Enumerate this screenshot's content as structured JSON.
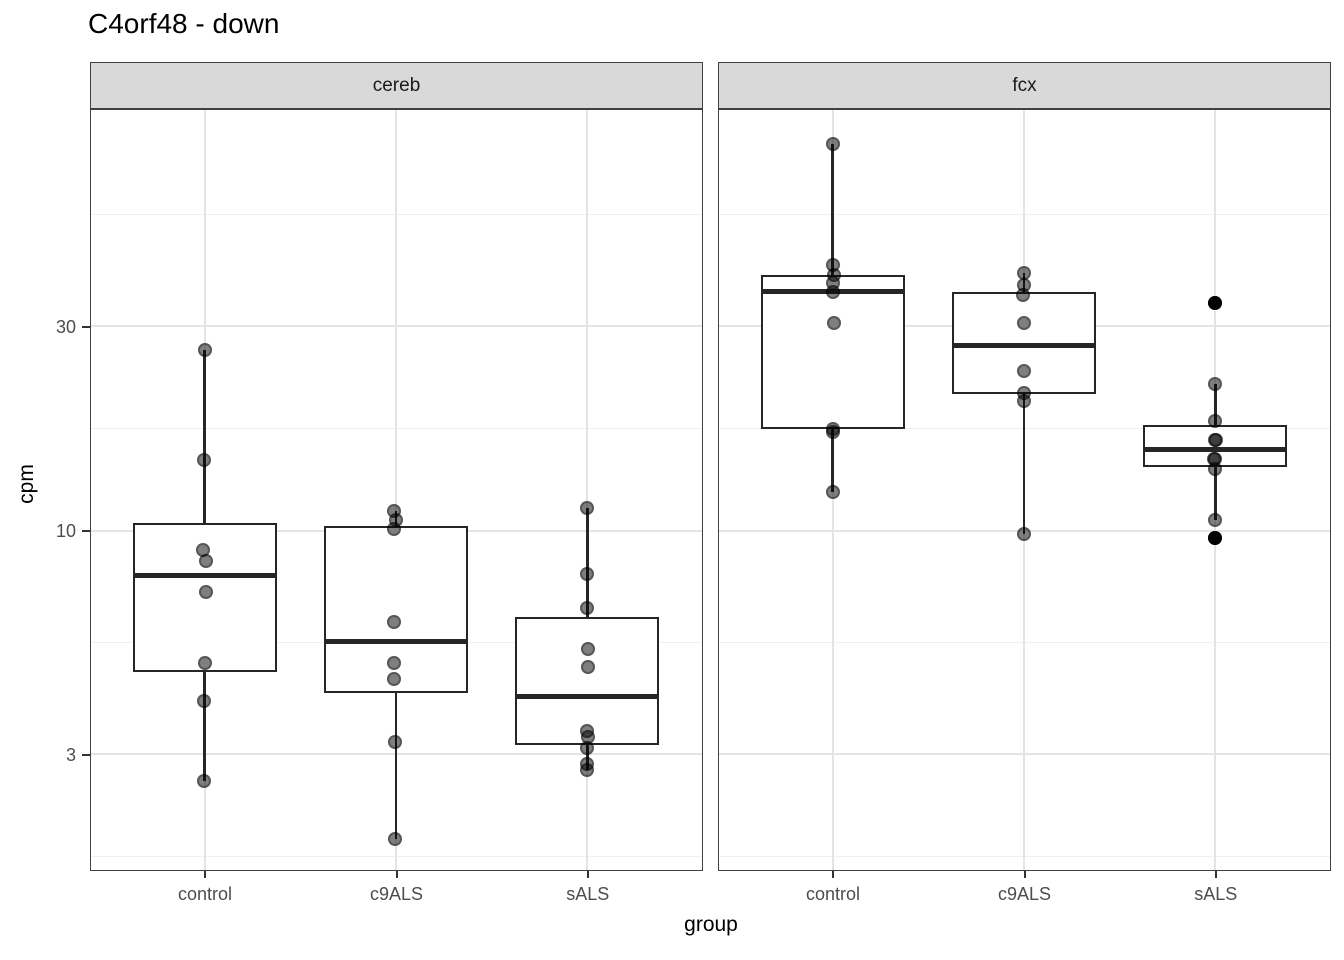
{
  "chart_data": {
    "type": "boxplot",
    "title": "C4orf48 - down",
    "xlabel": "group",
    "ylabel": "cpm",
    "y_scale": "log10",
    "y_tick_values": [
      30,
      10,
      3
    ],
    "y_minor_breaks": [
      54.77,
      17.32,
      5.48,
      1.73
    ],
    "x_categories": [
      "control",
      "c9ALS",
      "sALS"
    ],
    "legend": "none",
    "grid": "on",
    "facets": [
      {
        "label": "cereb",
        "groups": [
          {
            "name": "control",
            "points": [
              26.4,
              14.6,
              9.0,
              8.5,
              7.2,
              4.9,
              4.0,
              2.6
            ],
            "jitter": [
              0,
              -1,
              -2,
              1,
              1,
              0,
              -1,
              -1
            ],
            "box": {
              "q1": 4.68,
              "median": 7.85,
              "q3": 10.4,
              "whisker_low": 2.6,
              "whisker_high": 26.4
            },
            "outliers": []
          },
          {
            "name": "c9ALS",
            "points": [
              11.1,
              10.6,
              10.1,
              6.1,
              4.9,
              4.5,
              3.2,
              1.9
            ],
            "jitter": [
              -2,
              0,
              -2,
              -2,
              -2,
              -2,
              -1,
              -1
            ],
            "box": {
              "q1": 4.18,
              "median": 5.5,
              "q3": 10.23,
              "whisker_low": 1.9,
              "whisker_high": 11.1
            },
            "outliers": []
          },
          {
            "name": "sALS",
            "points": [
              11.3,
              7.9,
              6.6,
              5.3,
              4.8,
              3.4,
              3.3,
              3.1,
              2.85,
              2.75
            ],
            "jitter": [
              0,
              0,
              0,
              1,
              1,
              0,
              1,
              0,
              0,
              0
            ],
            "box": {
              "q1": 3.15,
              "median": 4.1,
              "q3": 6.28,
              "whisker_low": 2.75,
              "whisker_high": 11.3
            },
            "outliers": []
          }
        ]
      },
      {
        "label": "fcx",
        "groups": [
          {
            "name": "control",
            "points": [
              80,
              41.7,
              39.5,
              37.8,
              36.1,
              30.5,
              17.3,
              17.0,
              12.3
            ],
            "jitter": [
              0,
              0,
              1,
              0,
              0,
              1,
              0,
              0,
              0
            ],
            "box": {
              "q1": 17.3,
              "median": 36.1,
              "q3": 39.5,
              "whisker_low": 12.3,
              "whisker_high": 80
            },
            "outliers": []
          },
          {
            "name": "c9ALS",
            "points": [
              40,
              37.4,
              35.5,
              30.5,
              23.6,
              21.0,
              20.1,
              9.8
            ],
            "jitter": [
              0,
              0,
              -1,
              0,
              0,
              0,
              0,
              0
            ],
            "box": {
              "q1": 20.8,
              "median": 27.0,
              "q3": 36.0,
              "whisker_low": 9.8,
              "whisker_high": 40
            },
            "outliers": []
          },
          {
            "name": "sALS",
            "points": [
              34,
              22,
              18,
              16.3,
              16.3,
              14.7,
              14.7,
              13.9,
              10.6,
              9.6
            ],
            "jitter": [
              0,
              0,
              0,
              0,
              1,
              0,
              -1,
              0,
              0,
              0
            ],
            "box": {
              "q1": 14.1,
              "median": 15.5,
              "q3": 17.6,
              "whisker_low": 10.6,
              "whisker_high": 22
            },
            "outliers": [
              34,
              9.6
            ]
          }
        ]
      }
    ]
  }
}
